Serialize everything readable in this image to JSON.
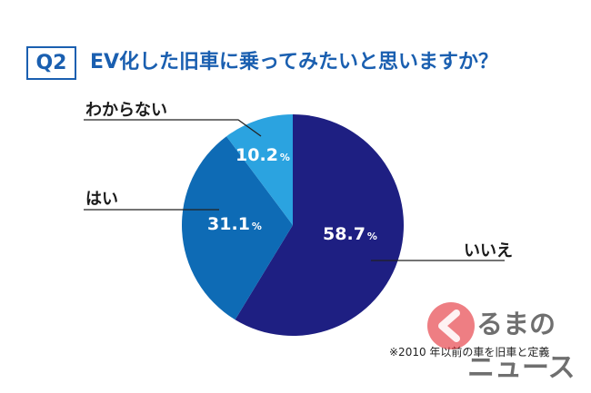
{
  "question": {
    "badge": "Q2",
    "text": "EV化した旧車に乗ってみたいと思いますか？"
  },
  "chart_data": {
    "type": "pie",
    "title": "EV化した旧車に乗ってみたいと思いますか？",
    "slices": [
      {
        "label": "いいえ",
        "value": 58.7,
        "display": "58.7",
        "color": "#1e1f82"
      },
      {
        "label": "はい",
        "value": 31.1,
        "display": "31.1",
        "color": "#0e6bb5"
      },
      {
        "label": "わからない",
        "value": 10.2,
        "display": "10.2",
        "color": "#2ba3e0"
      }
    ],
    "unit": "%",
    "start_angle_deg": 0,
    "direction": "clockwise"
  },
  "footnote": "※2010 年以前の車を旧車と定義",
  "logo": {
    "line1": "るまの",
    "line2": "ニュース",
    "mark_color": "#e0141e"
  }
}
